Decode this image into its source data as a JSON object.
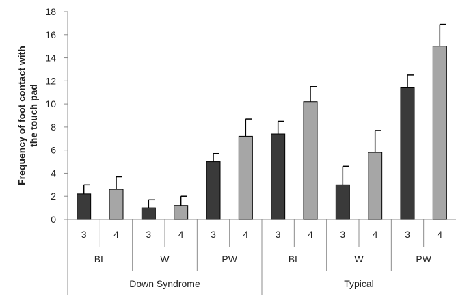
{
  "chart_data": {
    "type": "bar",
    "title": "",
    "ylabel": "Frequency of foot contact with the touch pad",
    "ylim": [
      0,
      18
    ],
    "yticks": [
      0,
      2,
      4,
      6,
      8,
      10,
      12,
      14,
      16,
      18
    ],
    "grid": false,
    "legend": "none",
    "colors": {
      "session3": "#3a3a3a",
      "session4": "#a6a6a6",
      "outline": "#000000",
      "axis": "#8c8c8c"
    },
    "groups": [
      {
        "label": "Down Syndrome",
        "conditions": [
          {
            "label": "BL",
            "bars": [
              {
                "label": "3",
                "value": 2.2,
                "error": 0.8
              },
              {
                "label": "4",
                "value": 2.6,
                "error": 1.1
              }
            ]
          },
          {
            "label": "W",
            "bars": [
              {
                "label": "3",
                "value": 1.0,
                "error": 0.7
              },
              {
                "label": "4",
                "value": 1.2,
                "error": 0.8
              }
            ]
          },
          {
            "label": "PW",
            "bars": [
              {
                "label": "3",
                "value": 5.0,
                "error": 0.7
              },
              {
                "label": "4",
                "value": 7.2,
                "error": 1.5
              }
            ]
          }
        ]
      },
      {
        "label": "Typical",
        "conditions": [
          {
            "label": "BL",
            "bars": [
              {
                "label": "3",
                "value": 7.4,
                "error": 1.1
              },
              {
                "label": "4",
                "value": 10.2,
                "error": 1.3
              }
            ]
          },
          {
            "label": "W",
            "bars": [
              {
                "label": "3",
                "value": 3.0,
                "error": 1.6
              },
              {
                "label": "4",
                "value": 5.8,
                "error": 1.9
              }
            ]
          },
          {
            "label": "PW",
            "bars": [
              {
                "label": "3",
                "value": 11.4,
                "error": 1.1
              },
              {
                "label": "4",
                "value": 15.0,
                "error": 1.9
              }
            ]
          }
        ]
      }
    ]
  }
}
